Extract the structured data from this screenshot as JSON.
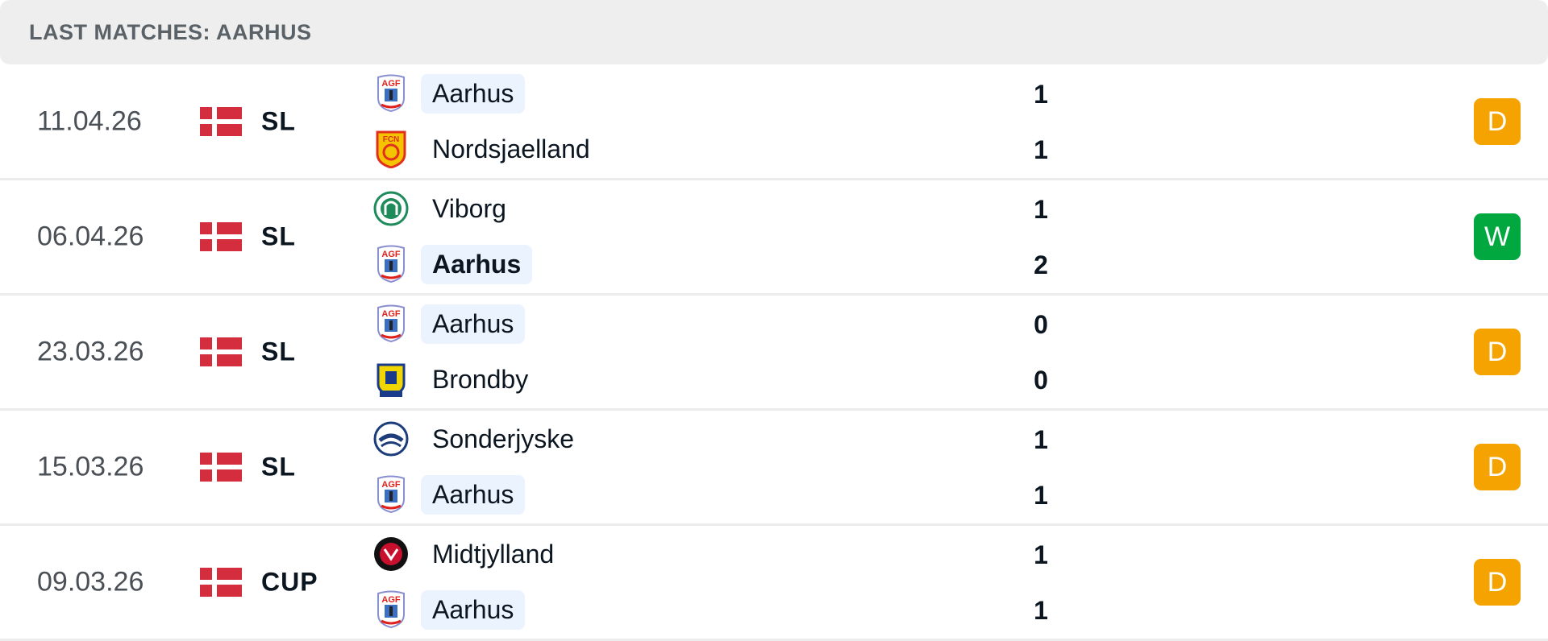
{
  "header": {
    "title": "LAST MATCHES: AARHUS"
  },
  "colors": {
    "draw": "#f5a300",
    "win": "#00a83f",
    "highlight": "#eaf3fe"
  },
  "matches": [
    {
      "date": "11.04.26",
      "country_flag": "denmark-flag",
      "league": "SL",
      "home": {
        "name": "Aarhus",
        "logo": "aarhus-crest",
        "score": "1",
        "highlight": true,
        "bold": false
      },
      "away": {
        "name": "Nordsjaelland",
        "logo": "nordsjaelland-crest",
        "score": "1",
        "highlight": false,
        "bold": false
      },
      "result": "D"
    },
    {
      "date": "06.04.26",
      "country_flag": "denmark-flag",
      "league": "SL",
      "home": {
        "name": "Viborg",
        "logo": "viborg-crest",
        "score": "1",
        "highlight": false,
        "bold": false
      },
      "away": {
        "name": "Aarhus",
        "logo": "aarhus-crest",
        "score": "2",
        "highlight": true,
        "bold": true
      },
      "result": "W"
    },
    {
      "date": "23.03.26",
      "country_flag": "denmark-flag",
      "league": "SL",
      "home": {
        "name": "Aarhus",
        "logo": "aarhus-crest",
        "score": "0",
        "highlight": true,
        "bold": false
      },
      "away": {
        "name": "Brondby",
        "logo": "brondby-crest",
        "score": "0",
        "highlight": false,
        "bold": false
      },
      "result": "D"
    },
    {
      "date": "15.03.26",
      "country_flag": "denmark-flag",
      "league": "SL",
      "home": {
        "name": "Sonderjyske",
        "logo": "sonderjyske-crest",
        "score": "1",
        "highlight": false,
        "bold": false
      },
      "away": {
        "name": "Aarhus",
        "logo": "aarhus-crest",
        "score": "1",
        "highlight": true,
        "bold": false
      },
      "result": "D"
    },
    {
      "date": "09.03.26",
      "country_flag": "denmark-flag",
      "league": "CUP",
      "home": {
        "name": "Midtjylland",
        "logo": "midtjylland-crest",
        "score": "1",
        "highlight": false,
        "bold": false
      },
      "away": {
        "name": "Aarhus",
        "logo": "aarhus-crest",
        "score": "1",
        "highlight": true,
        "bold": false
      },
      "result": "D"
    }
  ]
}
